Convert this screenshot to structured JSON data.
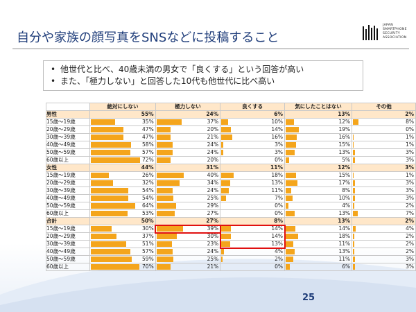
{
  "slide": {
    "title": "自分や家族の顔写真をSNSなどに投稿すること",
    "page_number": "25",
    "logo": {
      "text_lines": [
        "JAPAN",
        "SMARTPHONE",
        "SECURITY",
        "ASSOCIATION"
      ]
    }
  },
  "summary": [
    "他世代と比べ、40歳未満の男女で「良くする」という回答が高い",
    "また、「極力しない」と回答した10代も他世代に比べ高い"
  ],
  "chart_data": {
    "type": "table",
    "columns": [
      "絶対にしない",
      "極力しない",
      "良くする",
      "気にしたことはない",
      "その他"
    ],
    "bar_color": "#f4a51c",
    "unit": "%",
    "groups": [
      {
        "label": "男性",
        "total": [
          55,
          24,
          6,
          13,
          2
        ],
        "rows": [
          {
            "label": "15歳～19歳",
            "values": [
              35,
              37,
              10,
              12,
              8
            ]
          },
          {
            "label": "20歳～29歳",
            "values": [
              47,
              20,
              14,
              19,
              0
            ]
          },
          {
            "label": "30歳～39歳",
            "values": [
              47,
              21,
              16,
              16,
              1
            ]
          },
          {
            "label": "40歳～49歳",
            "values": [
              58,
              24,
              3,
              15,
              1
            ]
          },
          {
            "label": "50歳～59歳",
            "values": [
              57,
              24,
              3,
              13,
              3
            ]
          },
          {
            "label": "60歳以上",
            "values": [
              72,
              20,
              0,
              5,
              3
            ]
          }
        ]
      },
      {
        "label": "女性",
        "total": [
          44,
          31,
          11,
          12,
          3
        ],
        "rows": [
          {
            "label": "15歳～19歳",
            "values": [
              26,
              40,
              18,
              15,
              1
            ]
          },
          {
            "label": "20歳～29歳",
            "values": [
              32,
              34,
              13,
              17,
              3
            ]
          },
          {
            "label": "30歳～39歳",
            "values": [
              54,
              24,
              11,
              8,
              3
            ]
          },
          {
            "label": "40歳～49歳",
            "values": [
              54,
              25,
              7,
              10,
              3
            ]
          },
          {
            "label": "50歳～59歳",
            "values": [
              64,
              29,
              0,
              4,
              2
            ]
          },
          {
            "label": "60歳以上",
            "values": [
              53,
              27,
              0,
              13,
              7
            ]
          }
        ]
      },
      {
        "label": "合計",
        "total": [
          50,
          27,
          8,
          13,
          2
        ],
        "rows": [
          {
            "label": "15歳～19歳",
            "values": [
              30,
              39,
              14,
              14,
              4
            ]
          },
          {
            "label": "20歳～29歳",
            "values": [
              37,
              30,
              14,
              18,
              2
            ]
          },
          {
            "label": "30歳～39歳",
            "values": [
              51,
              23,
              13,
              11,
              2
            ]
          },
          {
            "label": "40歳～49歳",
            "values": [
              57,
              24,
              4,
              13,
              2
            ]
          },
          {
            "label": "50歳～59歳",
            "values": [
              59,
              25,
              2,
              11,
              3
            ]
          },
          {
            "label": "60歳以上",
            "values": [
              70,
              21,
              0,
              6,
              3
            ]
          }
        ]
      }
    ],
    "highlights": [
      {
        "group": "合計",
        "column": "極力しない",
        "rows": [
          "15歳～19歳"
        ]
      },
      {
        "group": "合計",
        "column": "良くする",
        "rows": [
          "15歳～19歳",
          "20歳～29歳",
          "30歳～39歳"
        ]
      }
    ]
  }
}
